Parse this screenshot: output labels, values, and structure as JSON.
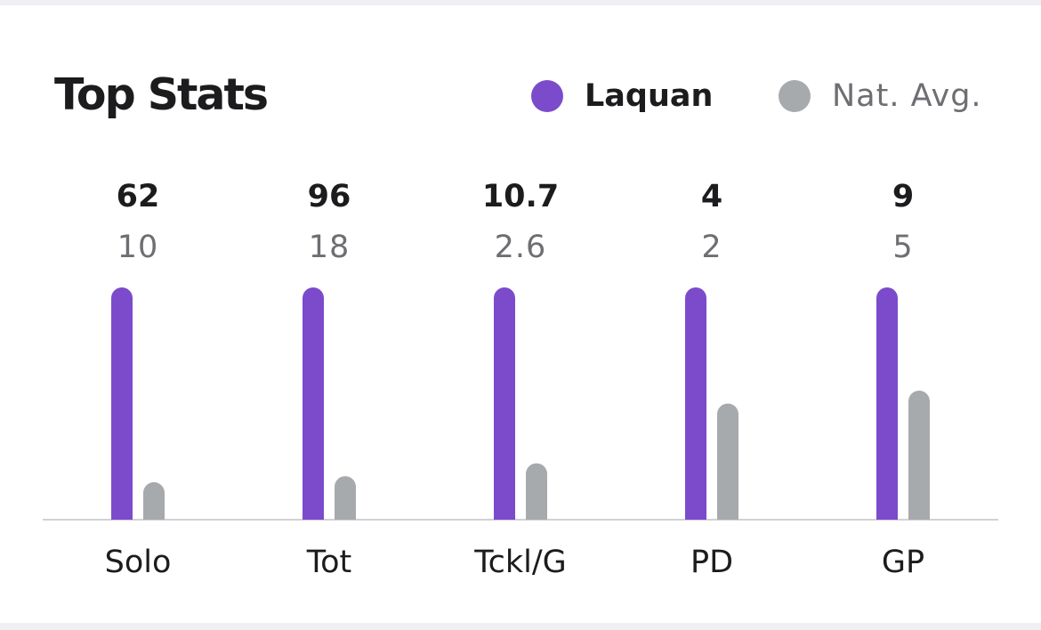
{
  "chart_data": {
    "type": "bar",
    "title": "Top Stats",
    "categories": [
      "Solo",
      "Tot",
      "Tckl/G",
      "PD",
      "GP"
    ],
    "series": [
      {
        "name": "Laquan",
        "values": [
          62,
          96,
          10.7,
          4,
          9
        ],
        "labels": [
          "62",
          "96",
          "10.7",
          "4",
          "9"
        ]
      },
      {
        "name": "Nat. Avg.",
        "values": [
          10,
          18,
          2.6,
          2,
          5
        ],
        "labels": [
          "10",
          "18",
          "2.6",
          "2",
          "5"
        ]
      }
    ],
    "normalization": "per-category relative to player value",
    "legend": "top-right",
    "grid": false
  },
  "colors": {
    "player": "#7b4bcc",
    "average": "#a7aaad",
    "baseline": "#d1d1d6"
  }
}
